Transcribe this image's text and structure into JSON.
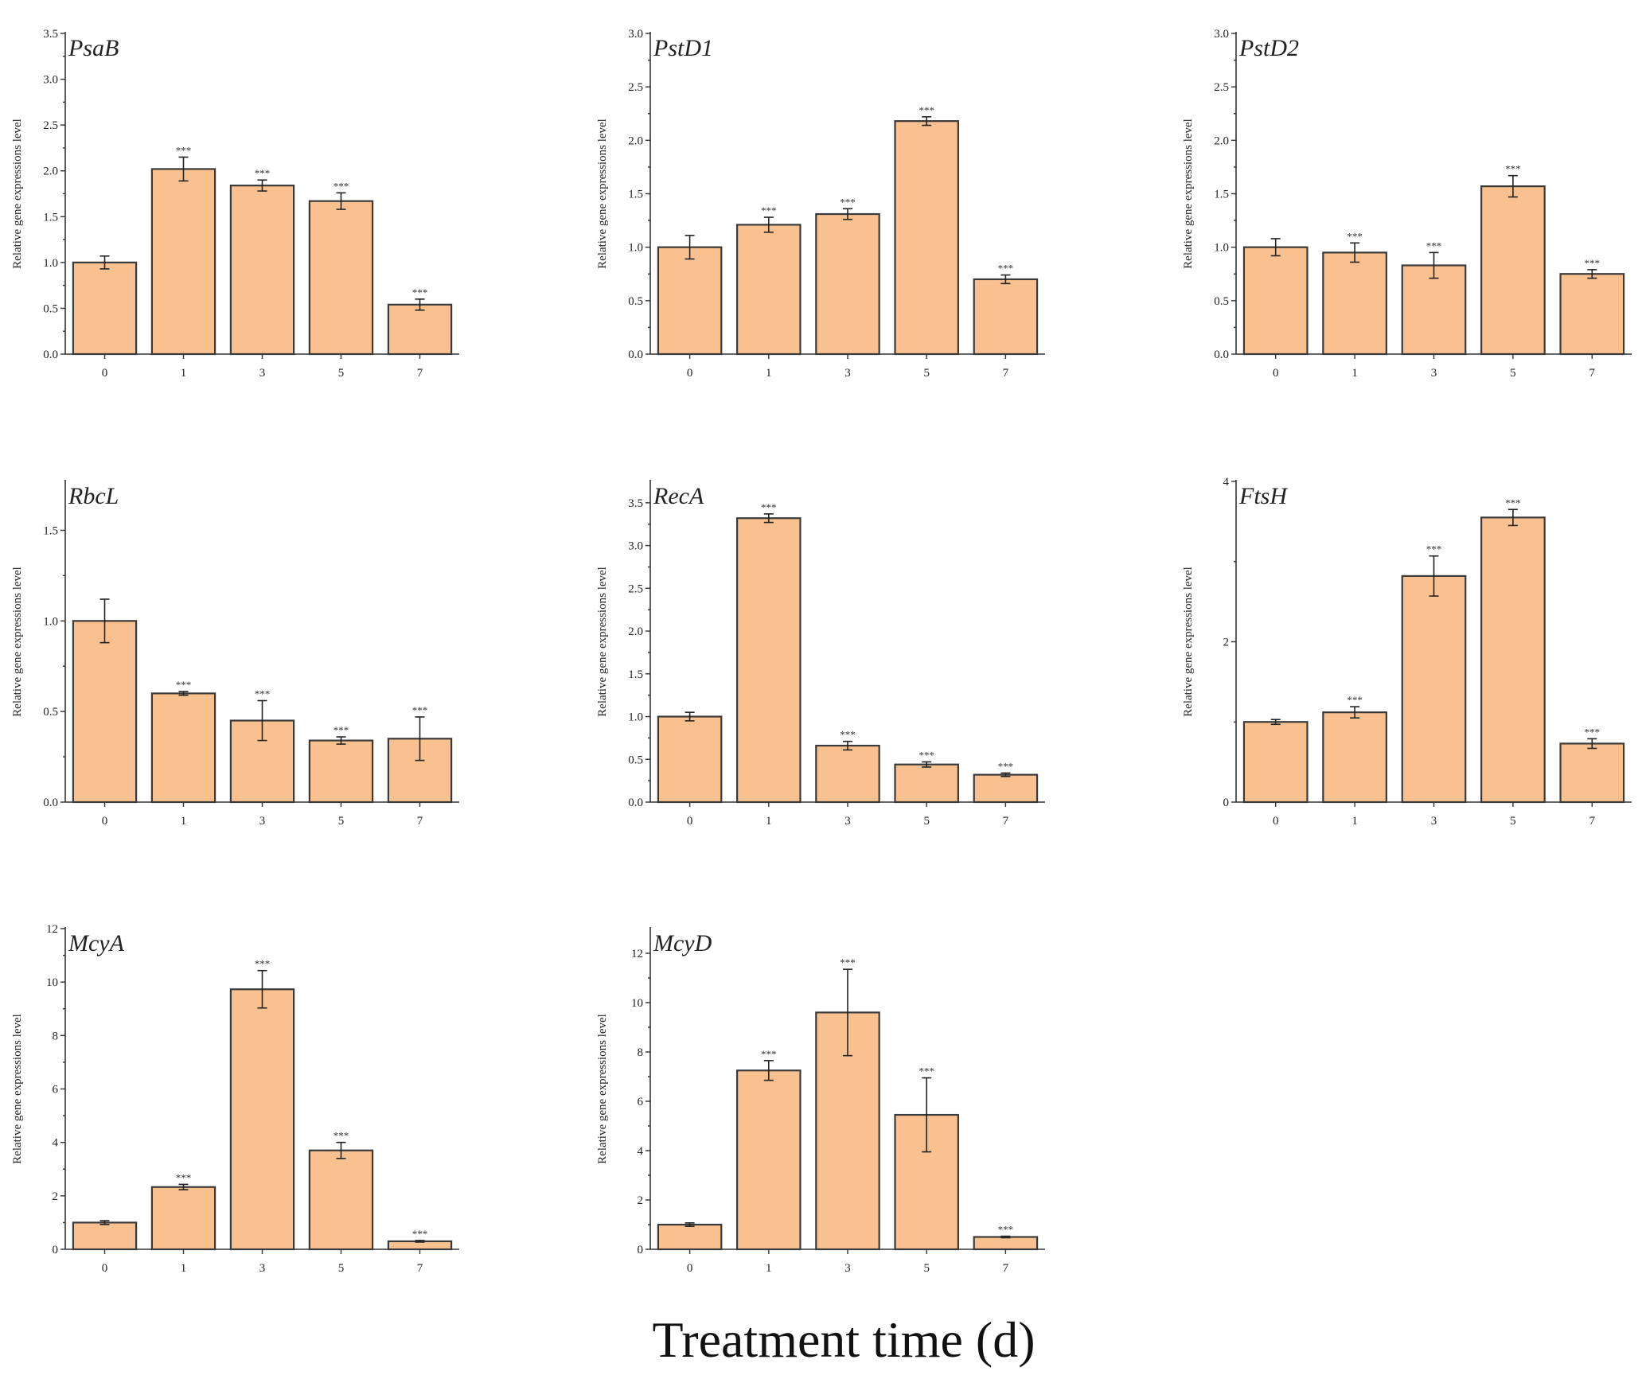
{
  "figure": {
    "x_title": "Treatment time (d)"
  },
  "colors": {
    "bar_fill": "#F9C18F",
    "bar_stroke": "#3a3a3a",
    "axis": "#333333"
  },
  "chart_data": [
    {
      "type": "bar",
      "title": "PsaB",
      "ylabel": "Relative gene expressions level",
      "xlabel": "",
      "categories": [
        "0",
        "1",
        "3",
        "5",
        "7"
      ],
      "values": [
        1.0,
        2.02,
        1.84,
        1.67,
        0.54
      ],
      "errors": [
        0.07,
        0.13,
        0.06,
        0.09,
        0.06
      ],
      "significance": [
        "",
        "***",
        "***",
        "***",
        "***"
      ],
      "ylim": [
        0,
        3.5
      ],
      "yticks": [
        0.0,
        0.5,
        1.0,
        1.5,
        2.0,
        2.5,
        3.0,
        3.5
      ],
      "ytick_labels": [
        "0.0",
        "0.5",
        "1.0",
        "1.5",
        "2.0",
        "2.5",
        "3.0",
        "3.5"
      ]
    },
    {
      "type": "bar",
      "title": "PstD1",
      "ylabel": "Relative gene expressions level",
      "xlabel": "",
      "categories": [
        "0",
        "1",
        "3",
        "5",
        "7"
      ],
      "values": [
        1.0,
        1.21,
        1.31,
        2.18,
        0.7
      ],
      "errors": [
        0.11,
        0.07,
        0.05,
        0.04,
        0.04
      ],
      "significance": [
        "",
        "***",
        "***",
        "***",
        "***"
      ],
      "ylim": [
        0,
        3.0
      ],
      "yticks": [
        0.0,
        0.5,
        1.0,
        1.5,
        2.0,
        2.5,
        3.0
      ],
      "ytick_labels": [
        "0.0",
        "0.5",
        "1.0",
        "1.5",
        "2.0",
        "2.5",
        "3.0"
      ]
    },
    {
      "type": "bar",
      "title": "PstD2",
      "ylabel": "Relative gene expressions level",
      "xlabel": "",
      "categories": [
        "0",
        "1",
        "3",
        "5",
        "7"
      ],
      "values": [
        1.0,
        0.95,
        0.83,
        1.57,
        0.75
      ],
      "errors": [
        0.08,
        0.09,
        0.12,
        0.1,
        0.04
      ],
      "significance": [
        "",
        "***",
        "***",
        "***",
        "***"
      ],
      "ylim": [
        0,
        3.0
      ],
      "yticks": [
        0.0,
        0.5,
        1.0,
        1.5,
        2.0,
        2.5,
        3.0
      ],
      "ytick_labels": [
        "0.0",
        "0.5",
        "1.0",
        "1.5",
        "2.0",
        "2.5",
        "3.0"
      ]
    },
    {
      "type": "bar",
      "title": "RbcL",
      "ylabel": "Relative gene expressions level",
      "xlabel": "",
      "categories": [
        "0",
        "1",
        "3",
        "5",
        "7"
      ],
      "values": [
        1.0,
        0.6,
        0.45,
        0.34,
        0.35
      ],
      "errors": [
        0.12,
        0.01,
        0.11,
        0.02,
        0.12
      ],
      "significance": [
        "",
        "***",
        "***",
        "***",
        "***"
      ],
      "ylim": [
        0,
        1.77
      ],
      "yticks": [
        0.0,
        0.5,
        1.0,
        1.5
      ],
      "ytick_labels": [
        "0.0",
        "0.5",
        "1.0",
        "1.5"
      ]
    },
    {
      "type": "bar",
      "title": "RecA",
      "ylabel": "Relative gene expressions level",
      "xlabel": "",
      "categories": [
        "0",
        "1",
        "3",
        "5",
        "7"
      ],
      "values": [
        1.0,
        3.32,
        0.66,
        0.44,
        0.32
      ],
      "errors": [
        0.05,
        0.05,
        0.05,
        0.03,
        0.02
      ],
      "significance": [
        "",
        "***",
        "***",
        "***",
        "***"
      ],
      "ylim": [
        0,
        3.75
      ],
      "yticks": [
        0.0,
        0.5,
        1.0,
        1.5,
        2.0,
        2.5,
        3.0,
        3.5
      ],
      "ytick_labels": [
        "0.0",
        "0.5",
        "1.0",
        "1.5",
        "2.0",
        "2.5",
        "3.0",
        "3.5"
      ]
    },
    {
      "type": "bar",
      "title": "FtsH",
      "ylabel": "Relative gene expressions level",
      "xlabel": "",
      "categories": [
        "0",
        "1",
        "3",
        "5",
        "7"
      ],
      "values": [
        1.0,
        1.12,
        2.82,
        3.55,
        0.73
      ],
      "errors": [
        0.03,
        0.07,
        0.25,
        0.1,
        0.06
      ],
      "significance": [
        "",
        "***",
        "***",
        "***",
        "***"
      ],
      "ylim": [
        0,
        4
      ],
      "yticks": [
        0,
        2,
        4
      ],
      "ytick_labels": [
        "0",
        "2",
        "4"
      ]
    },
    {
      "type": "bar",
      "title": "McyA",
      "ylabel": "Relative gene expressions level",
      "xlabel": "",
      "categories": [
        "0",
        "1",
        "3",
        "5",
        "7"
      ],
      "values": [
        1.0,
        2.33,
        9.73,
        3.7,
        0.3
      ],
      "errors": [
        0.07,
        0.1,
        0.7,
        0.3,
        0.03
      ],
      "significance": [
        "",
        "***",
        "***",
        "***",
        "***"
      ],
      "ylim": [
        0,
        12
      ],
      "yticks": [
        0,
        2,
        4,
        6,
        8,
        10,
        12
      ],
      "ytick_labels": [
        "0",
        "2",
        "4",
        "6",
        "8",
        "10",
        "12"
      ]
    },
    {
      "type": "bar",
      "title": "McyD",
      "ylabel": "Relative gene expressions level",
      "xlabel": "",
      "categories": [
        "0",
        "1",
        "3",
        "5",
        "7"
      ],
      "values": [
        1.0,
        7.25,
        9.6,
        5.45,
        0.5
      ],
      "errors": [
        0.07,
        0.4,
        1.75,
        1.5,
        0.03
      ],
      "significance": [
        "",
        "***",
        "***",
        "***",
        "***"
      ],
      "ylim": [
        0,
        13
      ],
      "yticks": [
        0,
        2,
        4,
        6,
        8,
        10,
        12
      ],
      "ytick_labels": [
        "0",
        "2",
        "4",
        "6",
        "8",
        "10",
        "12"
      ]
    }
  ]
}
